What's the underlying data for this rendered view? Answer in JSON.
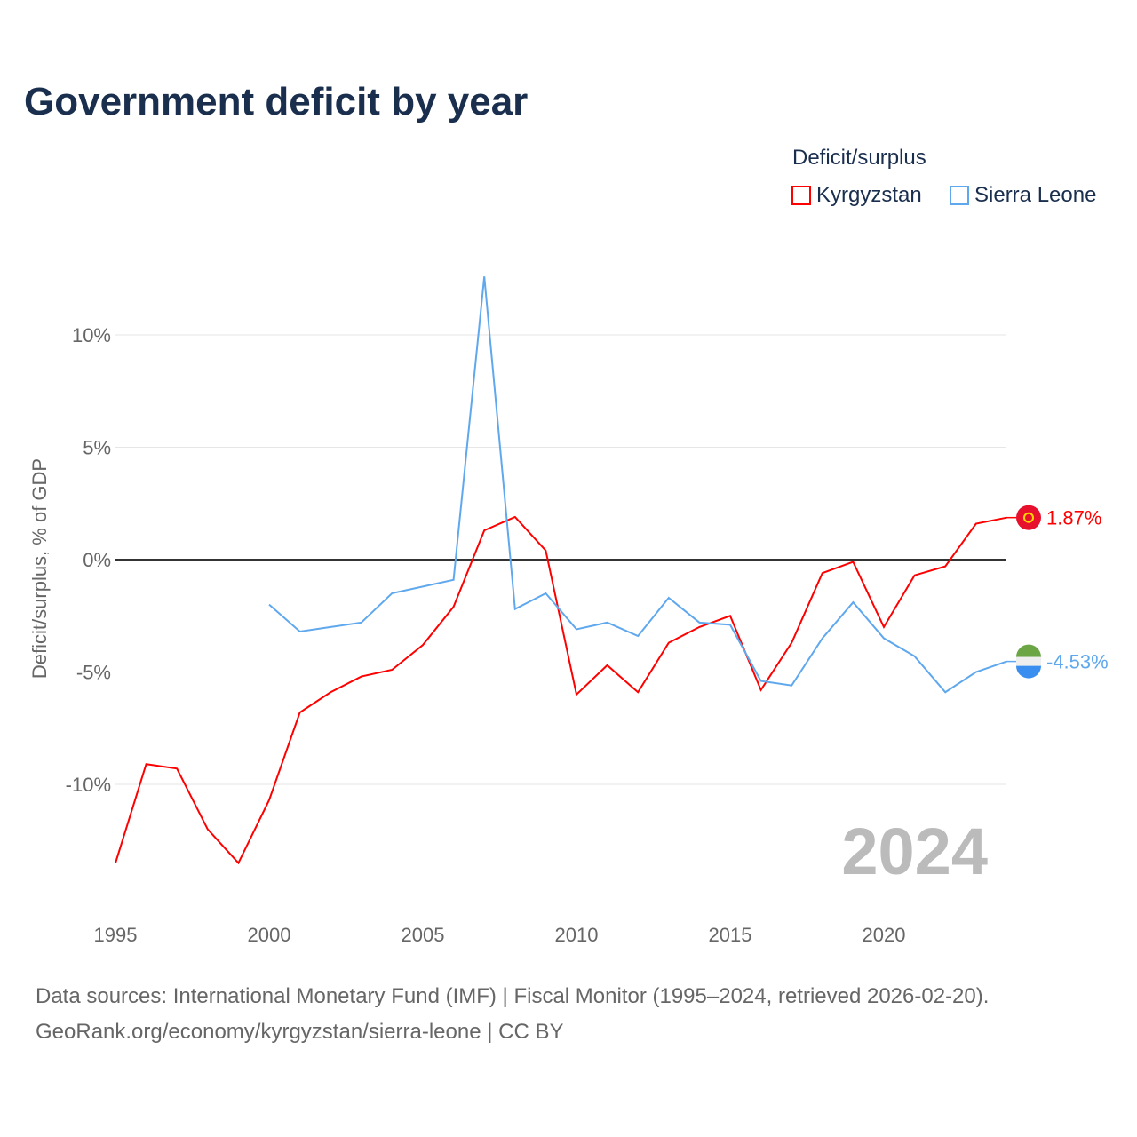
{
  "title": "Government deficit by year",
  "legend": {
    "title": "Deficit/surplus",
    "items": [
      "Kyrgyzstan",
      "Sierra Leone"
    ]
  },
  "colors": {
    "Kyrgyzstan": "#ff0000",
    "Sierra Leone": "#5fa8ee"
  },
  "footer": {
    "line1": "Data sources: International Monetary Fund (IMF) | Fiscal Monitor (1995–2024, retrieved 2026-02-20).",
    "line2": "GeoRank.org/economy/kyrgyzstan/sierra-leone | CC BY"
  },
  "chart_data": {
    "type": "line",
    "title": "Government deficit by year",
    "ylabel": "Deficit/surplus, % of GDP",
    "xlim": [
      1995,
      2024
    ],
    "ylim": [
      -14.5,
      13
    ],
    "yticks": [
      10,
      5,
      0,
      -5,
      -10
    ],
    "ytick_labels": [
      "10%",
      "5%",
      "0%",
      "-5%",
      "-10%"
    ],
    "xticks": [
      1995,
      2000,
      2005,
      2010,
      2015,
      2020
    ],
    "watermark_year": "2024",
    "series": [
      {
        "name": "Kyrgyzstan",
        "end_label": "1.87%",
        "x": [
          1995,
          1996,
          1997,
          1998,
          1999,
          2000,
          2001,
          2002,
          2003,
          2004,
          2005,
          2006,
          2007,
          2008,
          2009,
          2010,
          2011,
          2012,
          2013,
          2014,
          2015,
          2016,
          2017,
          2018,
          2019,
          2020,
          2021,
          2022,
          2023,
          2024
        ],
        "values": [
          -13.5,
          -9.1,
          -9.3,
          -12.0,
          -13.5,
          -10.7,
          -6.8,
          -5.9,
          -5.2,
          -4.9,
          -3.8,
          -2.1,
          1.3,
          1.9,
          0.4,
          -6.0,
          -4.7,
          -5.9,
          -3.7,
          -3.0,
          -2.5,
          -5.8,
          -3.7,
          -0.6,
          -0.1,
          -3.0,
          -0.7,
          -0.3,
          1.6,
          1.87
        ]
      },
      {
        "name": "Sierra Leone",
        "end_label": "-4.53%",
        "x": [
          2000,
          2001,
          2002,
          2003,
          2004,
          2005,
          2006,
          2007,
          2008,
          2009,
          2010,
          2011,
          2012,
          2013,
          2014,
          2015,
          2016,
          2017,
          2018,
          2019,
          2020,
          2021,
          2022,
          2023,
          2024
        ],
        "values": [
          -2.0,
          -3.2,
          -3.0,
          -2.8,
          -1.5,
          -1.2,
          -0.9,
          12.6,
          -2.2,
          -1.5,
          -3.1,
          -2.8,
          -3.4,
          -1.7,
          -2.8,
          -2.9,
          -5.4,
          -5.6,
          -3.5,
          -1.9,
          -3.5,
          -4.3,
          -5.9,
          -5.0,
          -4.53
        ]
      }
    ]
  }
}
